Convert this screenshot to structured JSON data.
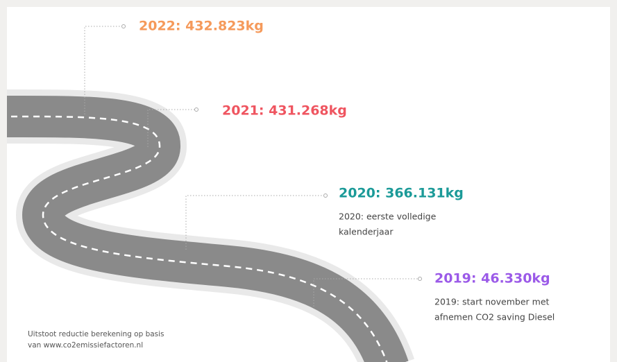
{
  "milestones": [
    {
      "title": "2022: 432.823kg"
    },
    {
      "title": "2021: 431.268kg"
    },
    {
      "title": "2020: 366.131kg",
      "description": [
        "2020: eerste volledige",
        "kalenderjaar"
      ]
    },
    {
      "title": "2019: 46.330kg",
      "description": [
        "2019: start november met",
        "afnemen CO2 saving Diesel"
      ]
    }
  ],
  "footnote": [
    "Uitstoot reductie berekening op basis",
    "van www.co2emissiefactoren.nl"
  ]
}
